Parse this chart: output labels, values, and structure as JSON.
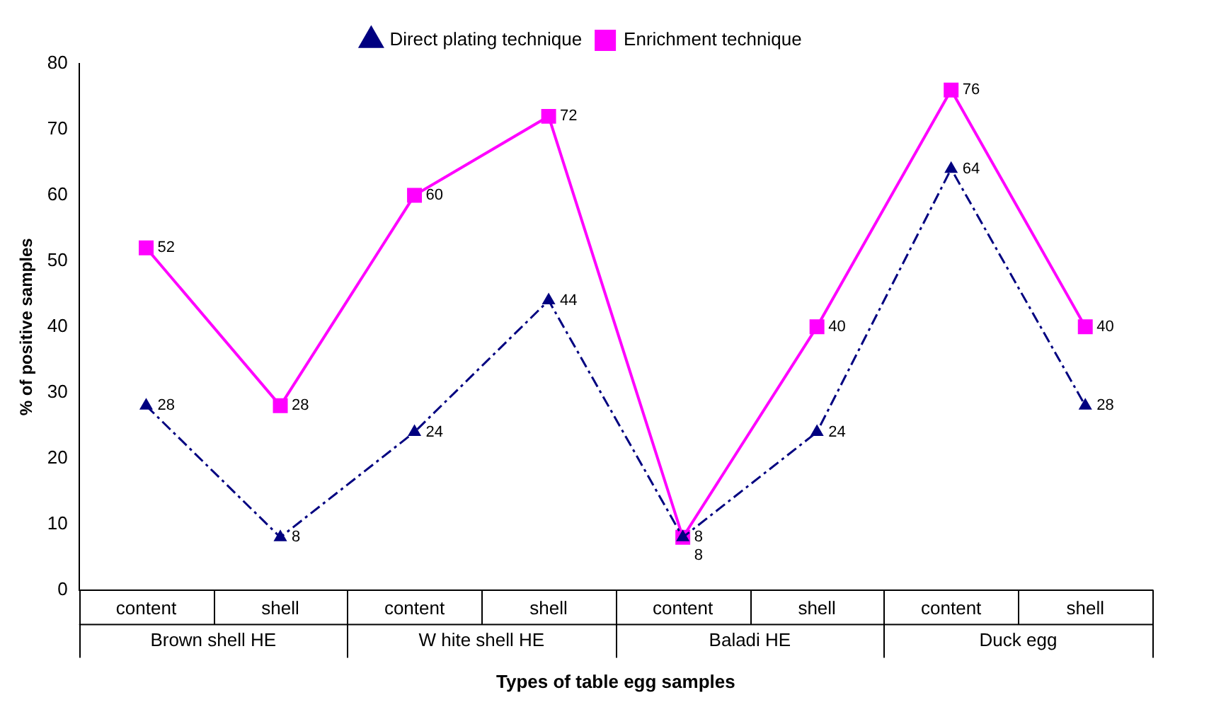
{
  "chart_data": {
    "type": "line",
    "xlabel": "Types of table egg samples",
    "ylabel": "% of positive samples",
    "categories": [
      "content",
      "shell",
      "content",
      "shell",
      "content",
      "shell",
      "content",
      "shell"
    ],
    "annotations": [
      "Brown shell HE",
      "W hite shell HE",
      "Baladi HE",
      "Duck egg"
    ],
    "series": [
      {
        "name": "Direct plating technique",
        "color": "#000080",
        "values": [
          28,
          8,
          24,
          44,
          8,
          24,
          64,
          28
        ],
        "marker": "triangle",
        "line_style": "dashed"
      },
      {
        "name": "Enrichment technique",
        "color": "#ff00ff",
        "values": [
          52,
          28,
          60,
          72,
          8,
          40,
          76,
          40
        ],
        "marker": "square",
        "line_style": "solid"
      }
    ],
    "ylim": [
      0,
      80
    ],
    "yticks": [
      0,
      10,
      20,
      30,
      40,
      50,
      60,
      70,
      80
    ],
    "grid": false,
    "legend": "top",
    "data_labels": true
  }
}
